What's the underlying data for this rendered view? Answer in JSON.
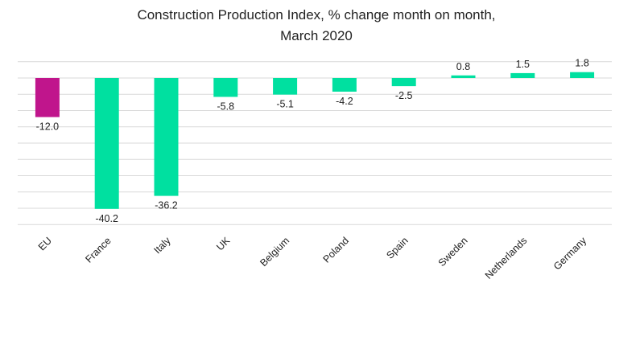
{
  "chart_data": {
    "type": "bar",
    "title_line1": "Construction Production Index, % change month on month,",
    "title_line2": "March 2020",
    "xlabel": "",
    "ylabel": "",
    "ylim": [
      -45,
      5
    ],
    "grid": true,
    "categories": [
      "EU",
      "France",
      "Italy",
      "UK",
      "Belgium",
      "Poland",
      "Spain",
      "Sweden",
      "Netherlands",
      "Germany"
    ],
    "values": [
      -12.0,
      -40.2,
      -36.2,
      -5.8,
      -5.1,
      -4.2,
      -2.5,
      0.8,
      1.5,
      1.8
    ],
    "value_labels": [
      "-12.0",
      "-40.2",
      "-36.2",
      "-5.8",
      "-5.1",
      "-4.2",
      "-2.5",
      "0.8",
      "1.5",
      "1.8"
    ],
    "colors": [
      "#c0158c",
      "#00e0a0",
      "#00e0a0",
      "#00e0a0",
      "#00e0a0",
      "#00e0a0",
      "#00e0a0",
      "#00e0a0",
      "#00e0a0",
      "#00e0a0"
    ]
  }
}
